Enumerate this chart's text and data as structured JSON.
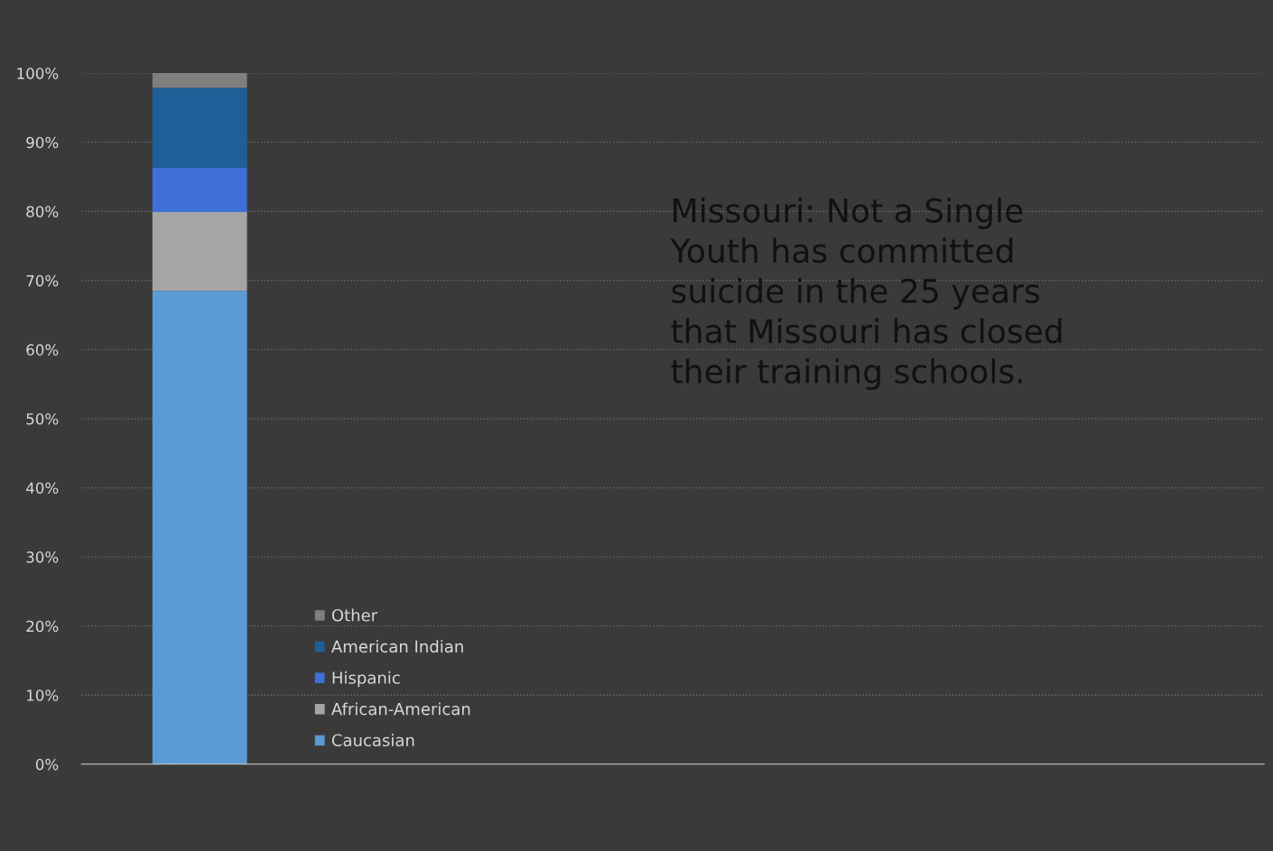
{
  "chart_data": {
    "type": "bar",
    "stacked": true,
    "categories": [
      null
    ],
    "series": [
      {
        "name": "Caucasian",
        "color": "#5b9bd5",
        "values": [
          68.5
        ]
      },
      {
        "name": "African-American",
        "color": "#a5a5a5",
        "values": [
          11.4
        ]
      },
      {
        "name": "Hispanic",
        "color": "#3f6fd8",
        "values": [
          6.4
        ]
      },
      {
        "name": "American Indian",
        "color": "#1f5f97",
        "values": [
          11.6
        ]
      },
      {
        "name": "Other",
        "color": "#7f7f7f",
        "values": [
          2.1
        ]
      }
    ],
    "ylim": [
      0,
      100
    ],
    "yticks": [
      {
        "value": 0,
        "label": "0%"
      },
      {
        "value": 10,
        "label": "10%"
      },
      {
        "value": 20,
        "label": "20%"
      },
      {
        "value": 30,
        "label": "30%"
      },
      {
        "value": 40,
        "label": "40%"
      },
      {
        "value": 50,
        "label": "50%"
      },
      {
        "value": 60,
        "label": "60%"
      },
      {
        "value": 70,
        "label": "70%"
      },
      {
        "value": 80,
        "label": "80%"
      },
      {
        "value": 90,
        "label": "90%"
      },
      {
        "value": 100,
        "label": "100%"
      }
    ],
    "grid": "y",
    "legend": "bottom left",
    "annotations": [
      "Missouri: Not a Single\nYouth has committed\nsuicide in the 25 years\nthat Missouri has closed\ntheir training schools."
    ]
  }
}
